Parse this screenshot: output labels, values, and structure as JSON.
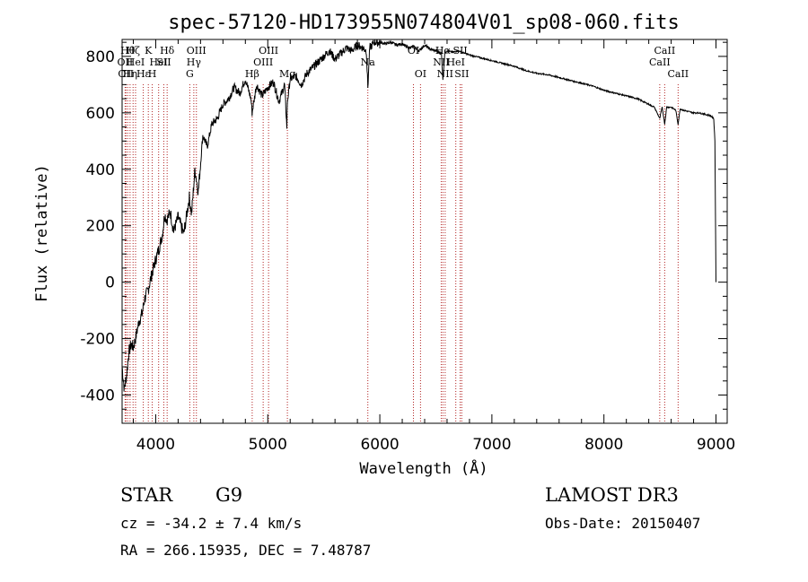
{
  "chart_data": {
    "type": "line",
    "title": "spec-57120-HD173955N074804V01_sp08-060.fits",
    "xlabel": "Wavelength (Å)",
    "ylabel": "Flux (relative)",
    "xlim": [
      3700,
      9100
    ],
    "ylim": [
      -500,
      860
    ],
    "xticks": [
      4000,
      5000,
      6000,
      7000,
      8000,
      9000
    ],
    "yticks": [
      -400,
      -200,
      0,
      200,
      400,
      600,
      800
    ],
    "grid": false,
    "series": [
      {
        "values_x": [
          3700,
          3720,
          3740,
          3760,
          3780,
          3800,
          3820,
          3850,
          3880,
          3900,
          3930,
          3960,
          3980,
          4000,
          4030,
          4060,
          4080,
          4100,
          4130,
          4160,
          4200,
          4250,
          4300,
          4320,
          4350,
          4380,
          4420,
          4460,
          4500,
          4550,
          4600,
          4650,
          4700,
          4750,
          4800,
          4850,
          4860,
          4900,
          4950,
          5000,
          5050,
          5100,
          5150,
          5170,
          5175,
          5200,
          5250,
          5300,
          5350,
          5400,
          5450,
          5500,
          5550,
          5600,
          5650,
          5700,
          5750,
          5800,
          5850,
          5880,
          5893,
          5910,
          5950,
          6000,
          6050,
          6100,
          6150,
          6200,
          6250,
          6300,
          6350,
          6400,
          6450,
          6500,
          6550,
          6563,
          6580,
          6600,
          6650,
          6700,
          6800,
          6900,
          7000,
          7100,
          7200,
          7300,
          7400,
          7500,
          7600,
          7700,
          7800,
          7900,
          8000,
          8100,
          8200,
          8300,
          8400,
          8450,
          8498,
          8520,
          8542,
          8560,
          8600,
          8640,
          8662,
          8680,
          8700,
          8750,
          8800,
          8850,
          8900,
          8950,
          8980,
          8990,
          9000
        ],
        "values_y": [
          -300,
          -380,
          -330,
          -250,
          -220,
          -230,
          -200,
          -140,
          -110,
          -60,
          -30,
          20,
          50,
          80,
          120,
          170,
          240,
          220,
          250,
          180,
          230,
          170,
          300,
          240,
          400,
          320,
          520,
          480,
          560,
          580,
          630,
          650,
          690,
          670,
          720,
          650,
          600,
          700,
          660,
          690,
          710,
          640,
          700,
          550,
          640,
          720,
          730,
          700,
          740,
          760,
          780,
          800,
          820,
          790,
          810,
          830,
          820,
          840,
          830,
          820,
          690,
          830,
          850,
          850,
          845,
          850,
          840,
          845,
          830,
          835,
          820,
          840,
          825,
          820,
          810,
          720,
          815,
          820,
          815,
          820,
          805,
          795,
          785,
          775,
          765,
          750,
          740,
          735,
          725,
          715,
          705,
          695,
          680,
          670,
          660,
          650,
          630,
          620,
          580,
          620,
          560,
          620,
          620,
          610,
          560,
          615,
          610,
          605,
          600,
          600,
          595,
          590,
          580,
          500,
          0
        ]
      }
    ],
    "line_markers": [
      {
        "wavelength": 3727,
        "label": "OII",
        "row": 1
      },
      {
        "wavelength": 3734,
        "label": "OII",
        "row": 2
      },
      {
        "wavelength": 3750,
        "label": "Hθ",
        "row": 0
      },
      {
        "wavelength": 3771,
        "label": "Hη",
        "row": 2
      },
      {
        "wavelength": 3798,
        "label": "Hζ",
        "row": 0
      },
      {
        "wavelength": 3820,
        "label": "HeI",
        "row": 1
      },
      {
        "wavelength": 3889,
        "label": "Hε",
        "row": 2
      },
      {
        "wavelength": 3934,
        "label": "K",
        "row": 0
      },
      {
        "wavelength": 3969,
        "label": "H",
        "row": 2
      },
      {
        "wavelength": 4026,
        "label": "HeI",
        "row": 1
      },
      {
        "wavelength": 4072,
        "label": "SII",
        "row": 1
      },
      {
        "wavelength": 4102,
        "label": "Hδ",
        "row": 0
      },
      {
        "wavelength": 4304,
        "label": "G",
        "row": 2
      },
      {
        "wavelength": 4340,
        "label": "Hγ",
        "row": 1
      },
      {
        "wavelength": 4363,
        "label": "OIII",
        "row": 0
      },
      {
        "wavelength": 4861,
        "label": "Hβ",
        "row": 2
      },
      {
        "wavelength": 4959,
        "label": "OIII",
        "row": 1
      },
      {
        "wavelength": 5007,
        "label": "OIII",
        "row": 0
      },
      {
        "wavelength": 5175,
        "label": "Mg",
        "row": 2
      },
      {
        "wavelength": 5893,
        "label": "Na",
        "row": 1
      },
      {
        "wavelength": 6300,
        "label": "OI",
        "row": 0
      },
      {
        "wavelength": 6363,
        "label": "OI",
        "row": 2
      },
      {
        "wavelength": 6548,
        "label": "NII",
        "row": 1
      },
      {
        "wavelength": 6563,
        "label": "Hα",
        "row": 0
      },
      {
        "wavelength": 6583,
        "label": "NII",
        "row": 2
      },
      {
        "wavelength": 6678,
        "label": "HeI",
        "row": 1
      },
      {
        "wavelength": 6717,
        "label": "SII",
        "row": 0
      },
      {
        "wavelength": 6731,
        "label": "SII",
        "row": 2
      },
      {
        "wavelength": 8498,
        "label": "CaII",
        "row": 1
      },
      {
        "wavelength": 8542,
        "label": "CaII",
        "row": 0
      },
      {
        "wavelength": 8662,
        "label": "CaII",
        "row": 2
      }
    ]
  },
  "footer": {
    "class": "STAR",
    "subclass": "G9",
    "survey": "LAMOST DR3",
    "cz": "cz = -34.2 ± 7.4 km/s",
    "obs_date": "Obs-Date: 20150407",
    "radec": "RA = 266.15935, DEC =   7.48787"
  }
}
